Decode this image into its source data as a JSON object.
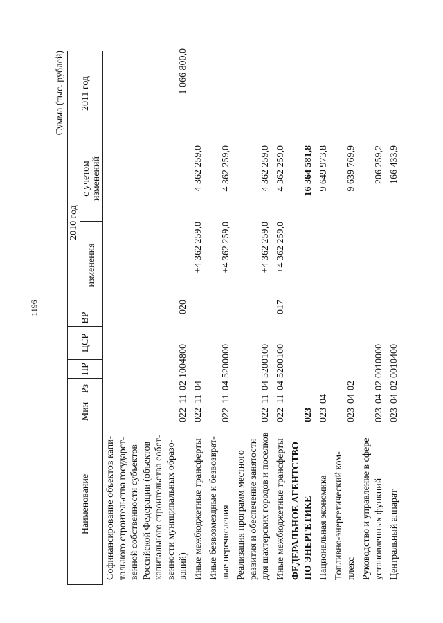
{
  "page_number": "1196",
  "units": "Сумма (тыс. рублей)",
  "header": {
    "name": "Наименование",
    "min": "Мин",
    "rz": "Рз",
    "pr": "ПР",
    "csr": "ЦСР",
    "vr": "ВР",
    "year2010": "2010 год",
    "changes": "изменения",
    "with_changes": "с учетом изменений",
    "year2011": "2011 год"
  },
  "rows": [
    {
      "name": [
        "Софинансирование объектов капи-",
        "тального строительства государст-",
        "венной собственности субъектов",
        "Российской Федерации (объектов",
        "капитального строительства собст-",
        "венности муниципальных образо-",
        "ваний)"
      ],
      "min": "022",
      "rz": "11",
      "pr": "02",
      "csr": "1004800",
      "vr": "020",
      "changes": "",
      "with_changes": "",
      "y2011": "1 066 800,0",
      "bold": false
    },
    {
      "name": [
        "Иные межбюджетные трансферты"
      ],
      "min": "022",
      "rz": "11",
      "pr": "04",
      "csr": "",
      "vr": "",
      "changes": "+4 362 259,0",
      "with_changes": "4 362 259,0",
      "y2011": "",
      "bold": false
    },
    {
      "name": [
        "Иные безвозмездные и безвозврат-",
        "ные перечисления"
      ],
      "min": "022",
      "rz": "11",
      "pr": "04",
      "csr": "5200000",
      "vr": "",
      "changes": "+4 362 259,0",
      "with_changes": "4 362 259,0",
      "y2011": "",
      "bold": false
    },
    {
      "name": [
        "Реализация программ местного",
        "развития и обеспечение занятости",
        "для шахтерских городов и поселков"
      ],
      "min": "022",
      "rz": "11",
      "pr": "04",
      "csr": "5200100",
      "vr": "",
      "changes": "+4 362 259,0",
      "with_changes": "4 362 259,0",
      "y2011": "",
      "bold": false
    },
    {
      "name": [
        "Иные межбюджетные трансферты"
      ],
      "min": "022",
      "rz": "11",
      "pr": "04",
      "csr": "5200100",
      "vr": "017",
      "changes": "+4 362 259,0",
      "with_changes": "4 362 259,0",
      "y2011": "",
      "bold": false
    },
    {
      "name": [
        "ФЕДЕРАЛЬНОЕ АГЕНТСТВО",
        "ПО ЭНЕРГЕТИКЕ"
      ],
      "min": "023",
      "rz": "",
      "pr": "",
      "csr": "",
      "vr": "",
      "changes": "",
      "with_changes": "16 364 581,8",
      "y2011": "",
      "bold": true
    },
    {
      "name": [
        "Национальная экономика"
      ],
      "min": "023",
      "rz": "04",
      "pr": "",
      "csr": "",
      "vr": "",
      "changes": "",
      "with_changes": "9 649 973,8",
      "y2011": "",
      "bold": false
    },
    {
      "name": [
        "Топливно-энергетический ком-",
        "плекс"
      ],
      "min": "023",
      "rz": "04",
      "pr": "02",
      "csr": "",
      "vr": "",
      "changes": "",
      "with_changes": "9 639 769,9",
      "y2011": "",
      "bold": false
    },
    {
      "name": [
        "Руководство и управление в сфере",
        "установленных функций"
      ],
      "min": "023",
      "rz": "04",
      "pr": "02",
      "csr": "0010000",
      "vr": "",
      "changes": "",
      "with_changes": "206 259,2",
      "y2011": "",
      "bold": false
    },
    {
      "name": [
        "Центральный аппарат"
      ],
      "min": "023",
      "rz": "04",
      "pr": "02",
      "csr": "0010400",
      "vr": "",
      "changes": "",
      "with_changes": "166 433,9",
      "y2011": "",
      "bold": false
    }
  ]
}
